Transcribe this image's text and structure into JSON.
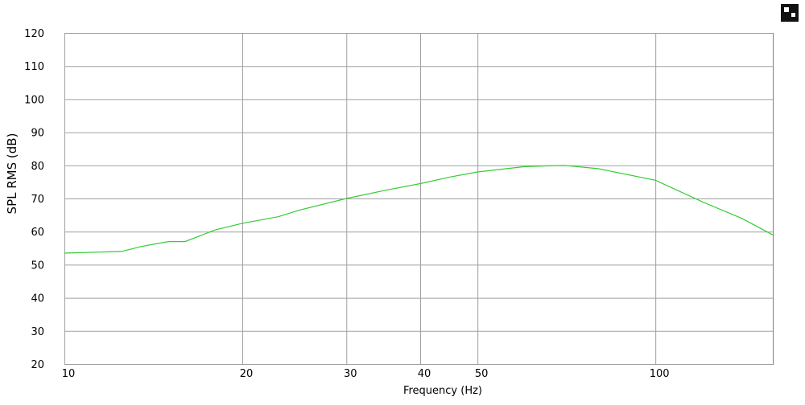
{
  "chart_data": {
    "type": "line",
    "x_label": "Frequency (Hz)",
    "y_label": "SPL RMS (dB)",
    "x_log": true,
    "grid": true,
    "xlim": [
      10,
      158
    ],
    "xticks": [
      10,
      20,
      30,
      40,
      50,
      100
    ],
    "ylim": [
      20,
      120
    ],
    "yticks": [
      20,
      30,
      40,
      50,
      60,
      70,
      80,
      90,
      100,
      110,
      120
    ],
    "x": [
      10,
      12.5,
      13.5,
      15,
      16,
      18,
      20,
      23,
      25,
      30,
      35,
      40,
      45,
      50,
      60,
      70,
      80,
      100,
      120,
      140,
      158
    ],
    "series": [
      {
        "color": "#33cc33",
        "values": [
          53.5,
          54,
          55.5,
          57,
          57,
          60.5,
          62.5,
          64.5,
          66.5,
          70,
          72.5,
          74.5,
          76.5,
          78,
          79.6,
          80,
          79,
          75.5,
          69,
          64,
          59
        ]
      }
    ]
  }
}
